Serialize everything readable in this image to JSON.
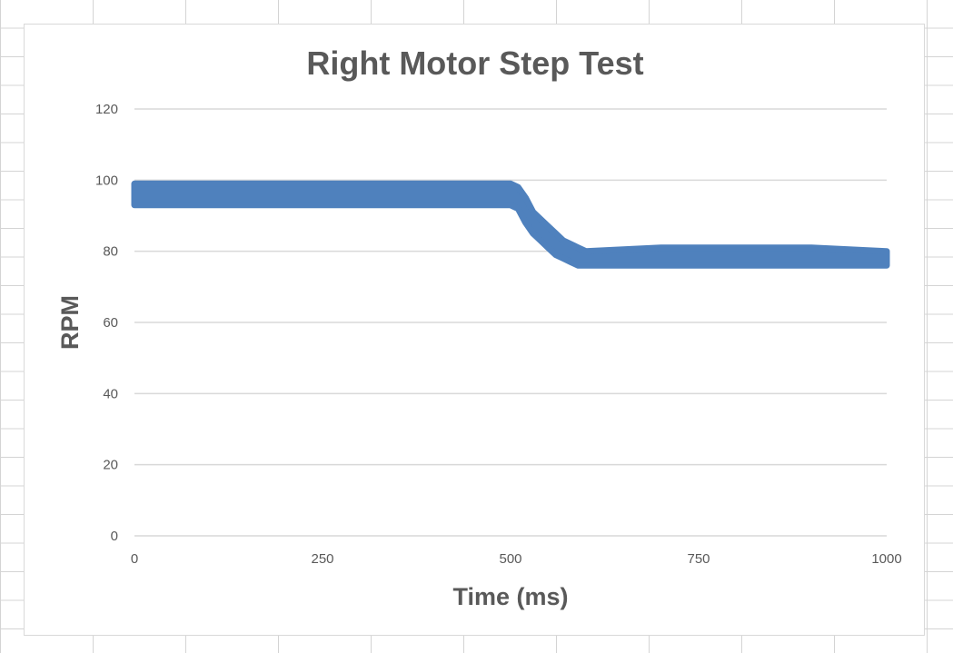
{
  "chart_data": {
    "type": "line",
    "title": "Right Motor Step Test",
    "xlabel": "Time (ms)",
    "ylabel": "RPM",
    "xlim": [
      0,
      1000
    ],
    "ylim": [
      0,
      120
    ],
    "x_ticks": [
      "0",
      "250",
      "500",
      "750",
      "1000"
    ],
    "y_ticks": [
      "0",
      "20",
      "40",
      "60",
      "80",
      "100",
      "120"
    ],
    "grid": "horizontal",
    "legend": "none",
    "series": [
      {
        "color": "#4f81bd",
        "marker": "circle",
        "x": [
          0,
          100,
          200,
          300,
          400,
          500,
          510,
          520,
          530,
          540,
          550,
          560,
          570,
          580,
          590,
          600,
          700,
          800,
          900,
          1000
        ],
        "y_low": [
          93,
          93,
          93,
          93,
          93,
          93,
          92,
          88,
          85,
          83,
          81,
          79,
          78,
          77,
          76,
          76,
          76,
          76,
          76,
          76
        ],
        "y_high": [
          99,
          99,
          99,
          99,
          99,
          99,
          98,
          95,
          91,
          89,
          87,
          85,
          83,
          82,
          81,
          80,
          81,
          81,
          81,
          80
        ]
      }
    ]
  }
}
